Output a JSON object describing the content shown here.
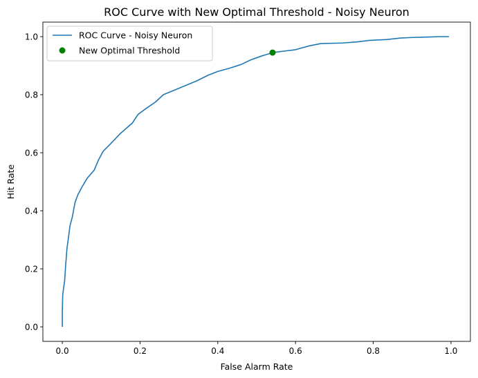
{
  "chart_data": {
    "type": "line",
    "title": "ROC Curve with New Optimal Threshold - Noisy Neuron",
    "xlabel": "False Alarm Rate",
    "ylabel": "Hit Rate",
    "xlim": [
      -0.05,
      1.05
    ],
    "ylim": [
      -0.05,
      1.05
    ],
    "grid": false,
    "legend_position": "top-left",
    "x_ticks": [
      "0.0",
      "0.2",
      "0.4",
      "0.6",
      "0.8",
      "1.0"
    ],
    "y_ticks": [
      "0.0",
      "0.2",
      "0.4",
      "0.6",
      "0.8",
      "1.0"
    ],
    "series": [
      {
        "name": "ROC Curve - Noisy Neuron",
        "kind": "line",
        "color": "#1f77b4",
        "x": [
          0.0,
          0.0,
          0.001,
          0.003,
          0.006,
          0.009,
          0.012,
          0.016,
          0.02,
          0.026,
          0.03,
          0.033,
          0.04,
          0.052,
          0.064,
          0.082,
          0.092,
          0.105,
          0.125,
          0.15,
          0.18,
          0.195,
          0.215,
          0.24,
          0.26,
          0.3,
          0.345,
          0.375,
          0.4,
          0.43,
          0.46,
          0.485,
          0.51,
          0.541,
          0.57,
          0.6,
          0.635,
          0.665,
          0.72,
          0.76,
          0.79,
          0.835,
          0.87,
          0.9,
          0.925,
          0.95,
          0.97,
          0.995
        ],
        "y": [
          0.0,
          0.05,
          0.11,
          0.13,
          0.16,
          0.22,
          0.27,
          0.31,
          0.35,
          0.38,
          0.41,
          0.43,
          0.455,
          0.485,
          0.512,
          0.54,
          0.572,
          0.605,
          0.632,
          0.667,
          0.702,
          0.732,
          0.752,
          0.775,
          0.8,
          0.822,
          0.847,
          0.867,
          0.88,
          0.891,
          0.904,
          0.92,
          0.932,
          0.945,
          0.95,
          0.955,
          0.968,
          0.976,
          0.978,
          0.982,
          0.987,
          0.99,
          0.995,
          0.997,
          0.998,
          0.999,
          1.0,
          1.0
        ]
      },
      {
        "name": "New Optimal Threshold",
        "kind": "scatter",
        "color": "#008000",
        "x": [
          0.541
        ],
        "y": [
          0.945
        ]
      }
    ]
  }
}
